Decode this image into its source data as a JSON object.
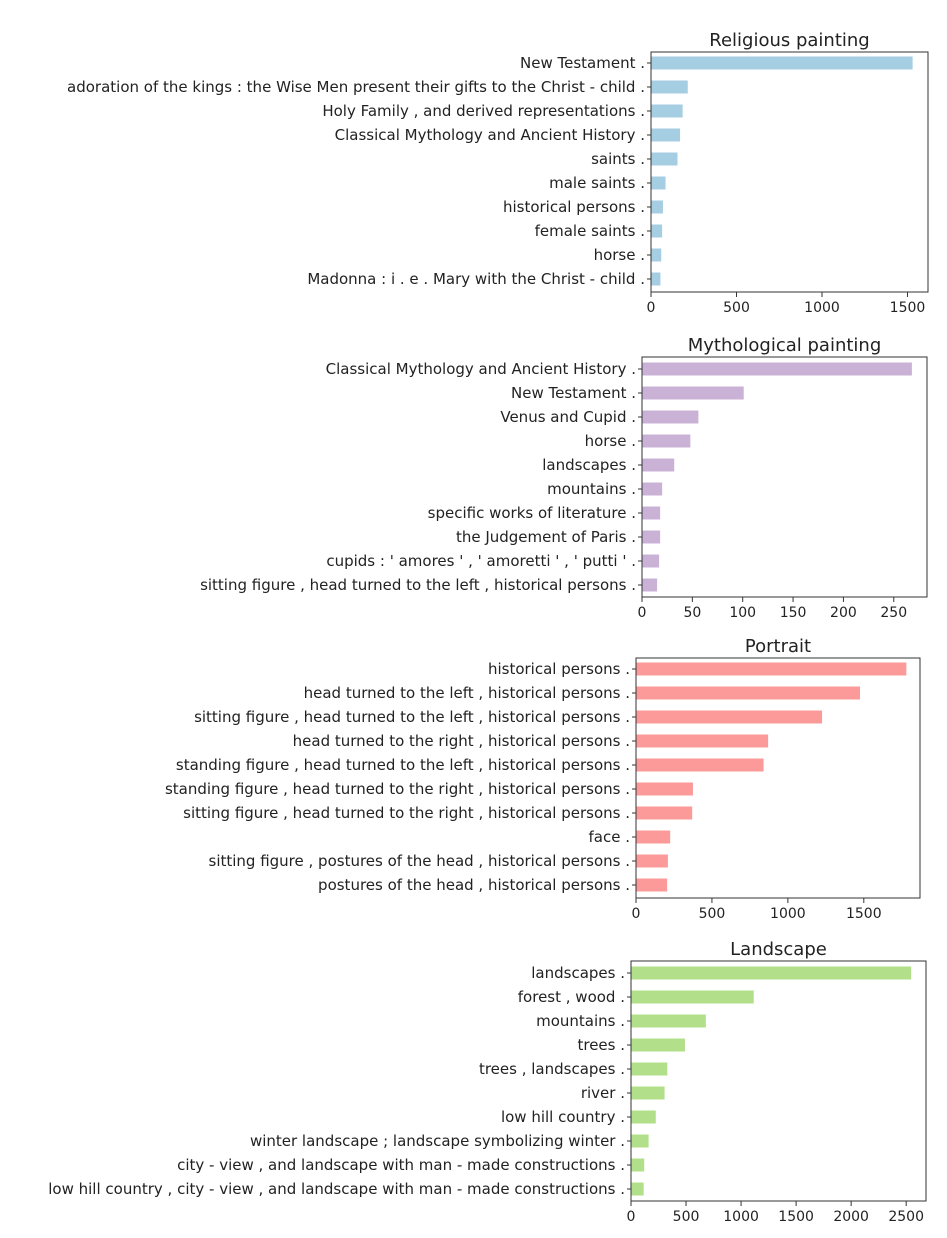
{
  "chart_data": [
    {
      "type": "bar",
      "orientation": "horizontal",
      "title": "Religious painting",
      "color": "#a6cee3",
      "categories": [
        "New Testament .",
        "adoration of the kings : the Wise Men present their gifts to the Christ - child .",
        "Holy Family , and derived representations .",
        "Classical Mythology and Ancient History .",
        "saints .",
        "male saints .",
        "historical persons .",
        "female saints .",
        "horse .",
        "Madonna : i . e . Mary with the Christ - child ."
      ],
      "values": [
        1530,
        215,
        185,
        170,
        155,
        85,
        70,
        65,
        60,
        55
      ],
      "xlim": [
        0,
        1620
      ],
      "xticks": [
        0,
        500,
        1000,
        1500
      ],
      "xtick_labels": [
        "0",
        "500",
        "1000",
        "1500"
      ]
    },
    {
      "type": "bar",
      "orientation": "horizontal",
      "title": "Mythological painting",
      "color": "#cab2d6",
      "categories": [
        "Classical Mythology and Ancient History .",
        "New Testament .",
        "Venus and Cupid .",
        "horse .",
        "landscapes .",
        "mountains .",
        "specific works of literature .",
        "the Judgement of Paris .",
        "cupids : ' amores ' , ' amoretti ' , ' putti ' .",
        "sitting figure , head turned to the left , historical persons ."
      ],
      "values": [
        268,
        101,
        56,
        48,
        32,
        20,
        18,
        18,
        17,
        15
      ],
      "xlim": [
        0,
        283
      ],
      "xticks": [
        0,
        50,
        100,
        150,
        200,
        250
      ],
      "xtick_labels": [
        "0",
        "50",
        "100",
        "150",
        "200",
        "250"
      ]
    },
    {
      "type": "bar",
      "orientation": "horizontal",
      "title": "Portrait",
      "color": "#fb9a99",
      "categories": [
        "historical persons .",
        "head turned to the left , historical persons .",
        "sitting figure , head turned to the left , historical persons .",
        "head turned to the right , historical persons .",
        "standing figure , head turned to the left , historical persons .",
        "standing figure , head turned to the right , historical persons .",
        "sitting figure , head turned to the right , historical persons .",
        "face .",
        "sitting figure , postures of the head , historical persons .",
        "postures of the head , historical persons ."
      ],
      "values": [
        1780,
        1475,
        1225,
        870,
        840,
        375,
        370,
        225,
        210,
        205
      ],
      "xlim": [
        0,
        1870
      ],
      "xticks": [
        0,
        500,
        1000,
        1500
      ],
      "xtick_labels": [
        "0",
        "500",
        "1000",
        "1500"
      ]
    },
    {
      "type": "bar",
      "orientation": "horizontal",
      "title": "Landscape",
      "color": "#b2df8a",
      "categories": [
        "landscapes .",
        "forest , wood .",
        "mountains .",
        "trees .",
        "trees , landscapes .",
        "river .",
        "low hill country .",
        "winter landscape ; landscape symbolizing winter .",
        "city - view , and landscape with man - made constructions .",
        "low hill country , city - view , and landscape with man - made constructions ."
      ],
      "values": [
        2545,
        1115,
        680,
        490,
        330,
        305,
        225,
        160,
        120,
        115
      ],
      "xlim": [
        0,
        2680
      ],
      "xticks": [
        0,
        500,
        1000,
        1500,
        2000,
        2500
      ],
      "xtick_labels": [
        "0",
        "500",
        "1000",
        "1500",
        "2000",
        "2500"
      ]
    }
  ]
}
